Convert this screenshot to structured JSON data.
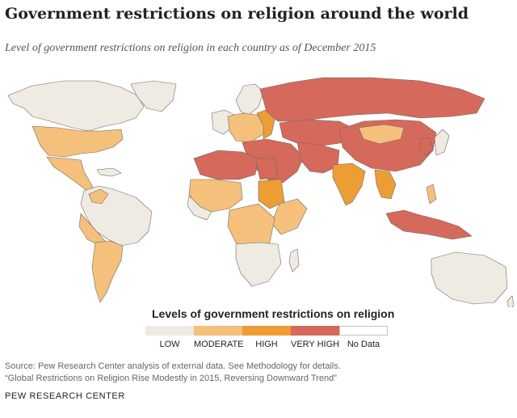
{
  "header": {
    "title": "Government restrictions on religion around the world",
    "subtitle": "Level of government restrictions on religion in each country as of December 2015"
  },
  "legend": {
    "title": "Levels of government restrictions on religion",
    "items": [
      {
        "label": "LOW",
        "color": "#efebe3"
      },
      {
        "label": "MODERATE",
        "color": "#f4c07c"
      },
      {
        "label": "HIGH",
        "color": "#ec9e35"
      },
      {
        "label": "VERY HIGH",
        "color": "#d5695b"
      },
      {
        "label": "No Data",
        "color": "#ffffff"
      }
    ]
  },
  "map_colors": {
    "border": "#6f6a62",
    "low": "#efebe3",
    "moderate": "#f4c07c",
    "high": "#ec9e35",
    "very_high": "#d5695b"
  },
  "source": {
    "line1": "Source: Pew Research Center analysis of external data. See Methodology for details.",
    "line2": "“Global Restrictions on Religion Rise Modestly in 2015, Reversing Downward Trend”"
  },
  "brand": "PEW RESEARCH CENTER"
}
